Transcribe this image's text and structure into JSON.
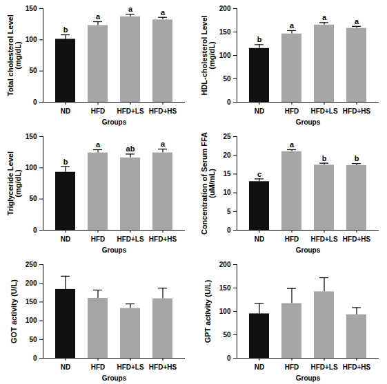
{
  "chart_data": [
    {
      "type": "bar",
      "x_label": "Groups",
      "y_label": "Total cholesterol Level\n(mg/dL)",
      "categories": [
        "ND",
        "HFD",
        "HFD+LS",
        "HFD+HS"
      ],
      "values": [
        101,
        123,
        137,
        132
      ],
      "errors": [
        7,
        6,
        4,
        4
      ],
      "annotations": [
        "b",
        "a",
        "a",
        "a"
      ],
      "colors": [
        "#111111",
        "#a6a6a6",
        "#a6a6a6",
        "#a6a6a6"
      ],
      "ylim": [
        0,
        150
      ],
      "yticks": [
        0,
        50,
        100,
        150
      ]
    },
    {
      "type": "bar",
      "x_label": "Groups",
      "y_label": "HDL-cholesterol Level\n(mg/dL)",
      "categories": [
        "ND",
        "HFD",
        "HFD+LS",
        "HFD+HS"
      ],
      "values": [
        115,
        146,
        165,
        158
      ],
      "errors": [
        8,
        7,
        5,
        4
      ],
      "annotations": [
        "b",
        "a",
        "a",
        "a"
      ],
      "colors": [
        "#111111",
        "#a6a6a6",
        "#a6a6a6",
        "#a6a6a6"
      ],
      "ylim": [
        0,
        200
      ],
      "yticks": [
        0,
        50,
        100,
        150,
        200
      ]
    },
    {
      "type": "bar",
      "x_label": "Groups",
      "y_label": "Triglyceride Level\n(mg/dL)",
      "categories": [
        "ND",
        "HFD",
        "HFD+LS",
        "HFD+HS"
      ],
      "values": [
        93,
        124,
        116,
        124
      ],
      "errors": [
        9,
        5,
        6,
        6
      ],
      "annotations": [
        "b",
        "a",
        "ab",
        "a"
      ],
      "colors": [
        "#111111",
        "#a6a6a6",
        "#a6a6a6",
        "#a6a6a6"
      ],
      "ylim": [
        0,
        150
      ],
      "yticks": [
        0,
        50,
        100,
        150
      ]
    },
    {
      "type": "bar",
      "x_label": "Groups",
      "y_label": "Concentration of Serum FFA\n(uM/mL)",
      "categories": [
        "ND",
        "HFD",
        "HFD+LS",
        "HFD+HS"
      ],
      "values": [
        13,
        21,
        17.4,
        17.3
      ],
      "errors": [
        0.7,
        0.5,
        0.5,
        0.5
      ],
      "annotations": [
        "c",
        "a",
        "b",
        "b"
      ],
      "colors": [
        "#111111",
        "#a6a6a6",
        "#a6a6a6",
        "#a6a6a6"
      ],
      "ylim": [
        0,
        25
      ],
      "yticks": [
        0,
        5,
        10,
        15,
        20,
        25
      ]
    },
    {
      "type": "bar",
      "x_label": "Groups",
      "y_label": "GOT activity (U/L)",
      "categories": [
        "ND",
        "HFD",
        "HFD+LS",
        "HFD+HS"
      ],
      "values": [
        184,
        160,
        133,
        159
      ],
      "errors": [
        35,
        22,
        12,
        28
      ],
      "colors": [
        "#111111",
        "#a6a6a6",
        "#a6a6a6",
        "#a6a6a6"
      ],
      "ylim": [
        0,
        250
      ],
      "yticks": [
        0,
        50,
        100,
        150,
        200,
        250
      ]
    },
    {
      "type": "bar",
      "x_label": "Groups",
      "y_label": "GPT activity (U/L)",
      "categories": [
        "ND",
        "HFD",
        "HFD+LS",
        "HFD+HS"
      ],
      "values": [
        95,
        117,
        142,
        93
      ],
      "errors": [
        22,
        32,
        30,
        15
      ],
      "colors": [
        "#111111",
        "#a6a6a6",
        "#a6a6a6",
        "#a6a6a6"
      ],
      "ylim": [
        0,
        200
      ],
      "yticks": [
        0,
        50,
        100,
        150,
        200
      ]
    }
  ]
}
